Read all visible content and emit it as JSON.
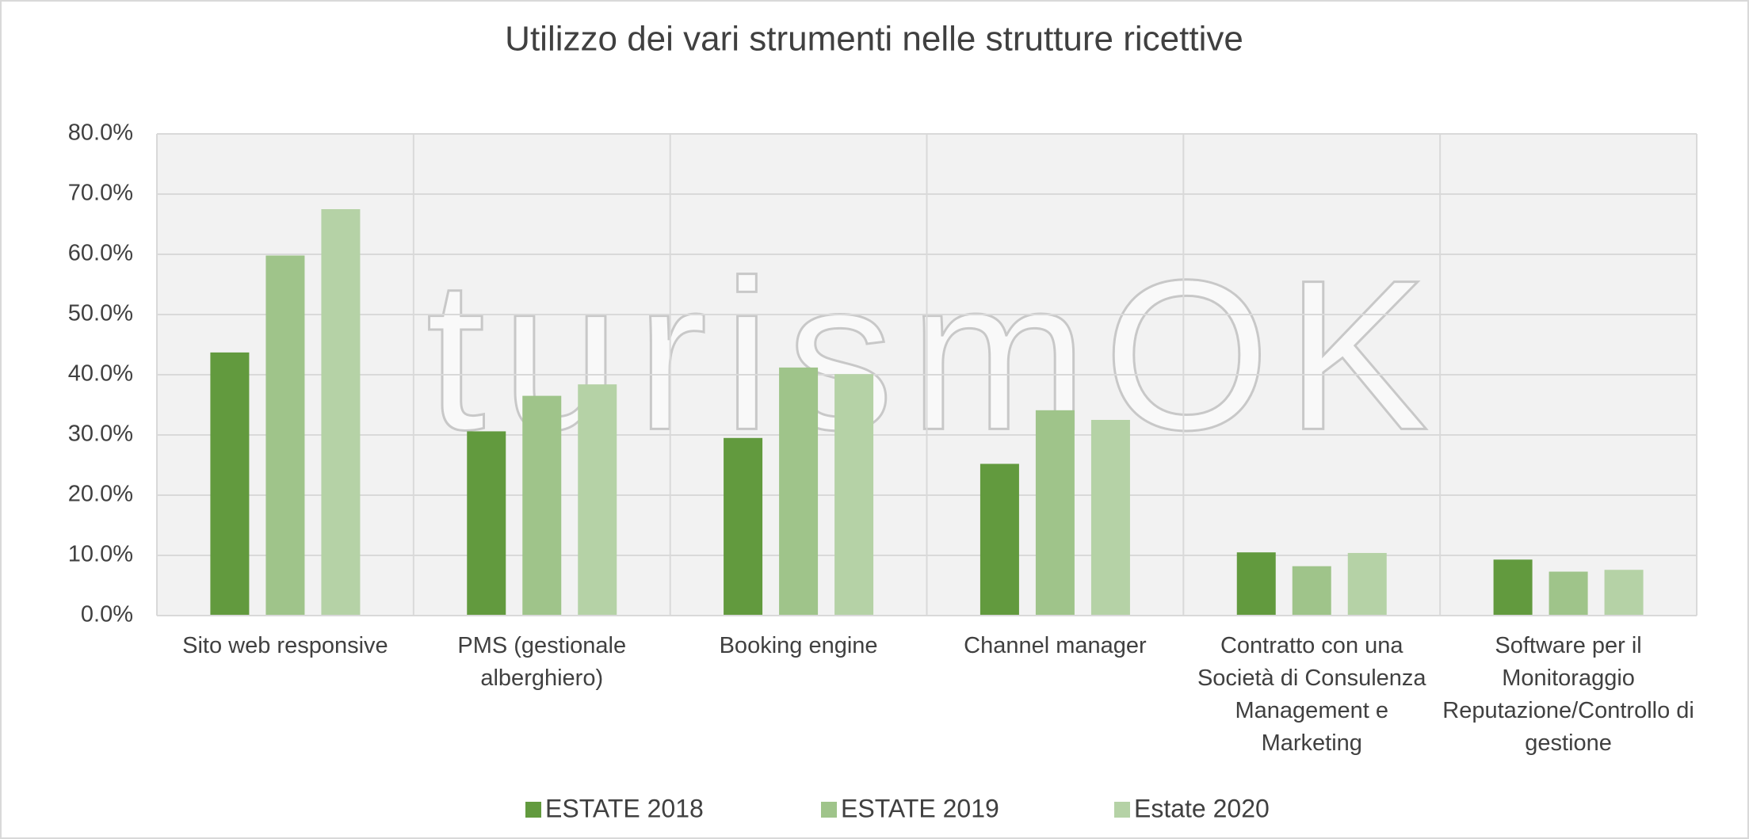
{
  "chart_data": {
    "type": "bar",
    "title": "Utilizzo dei vari strumenti nelle strutture ricettive",
    "watermark": "turismOK",
    "categories": [
      "Sito web responsive",
      "PMS (gestionale alberghiero)",
      "Booking engine",
      "Channel manager",
      "Contratto con una Società di Consulenza Management e Marketing",
      "Software per il Monitoraggio Reputazione/Controllo di gestione"
    ],
    "series": [
      {
        "name": "ESTATE 2018",
        "color": "#629a3e",
        "values": [
          43.7,
          30.6,
          29.5,
          25.2,
          10.5,
          9.3
        ]
      },
      {
        "name": "ESTATE 2019",
        "color": "#9fc48a",
        "values": [
          59.8,
          36.5,
          41.2,
          34.1,
          8.2,
          7.3
        ]
      },
      {
        "name": "Estate 2020",
        "color": "#b5d2a6",
        "values": [
          67.5,
          38.4,
          40.1,
          32.5,
          10.4,
          7.6
        ]
      }
    ],
    "ylim": [
      0,
      80
    ],
    "yticks": [
      {
        "value": 0,
        "label": "0.0%"
      },
      {
        "value": 10,
        "label": "10.0%"
      },
      {
        "value": 20,
        "label": "20.0%"
      },
      {
        "value": 30,
        "label": "30.0%"
      },
      {
        "value": 40,
        "label": "40.0%"
      },
      {
        "value": 50,
        "label": "50.0%"
      },
      {
        "value": 60,
        "label": "60.0%"
      },
      {
        "value": 70,
        "label": "70.0%"
      },
      {
        "value": 80,
        "label": "80.0%"
      }
    ],
    "grid": true,
    "legend": "bottom"
  }
}
